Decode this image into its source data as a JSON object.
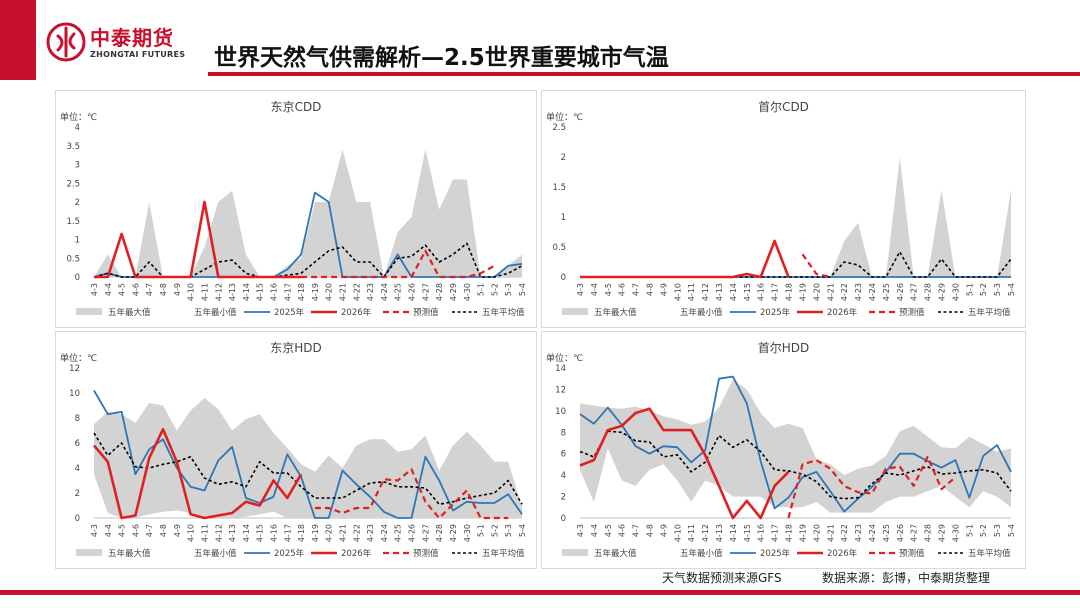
{
  "header": {
    "logo_cn": "中泰期货",
    "logo_en": "ZHONGTAI FUTURES",
    "title": "世界天然气供需解析—2.5世界重要城市气温"
  },
  "footer": {
    "gfs_source": "天气数据预测来源GFS",
    "data_source": "数据来源：彭博，中泰期货整理"
  },
  "colors": {
    "brand": "#c8102e",
    "band": "#d3d3d3",
    "y2025": "#2e75b6",
    "y2026": "#e02020",
    "forecast": "#e02020",
    "avg": "#000000"
  },
  "chart_data": [
    {
      "type": "line",
      "title": "东京CDD",
      "unit_label": "单位：℃",
      "ylim": [
        0,
        4
      ],
      "yticks": [
        "0",
        "0.5",
        "1",
        "1.5",
        "2",
        "2.5",
        "3",
        "3.5",
        "4"
      ],
      "categories": [
        "4-3",
        "4-4",
        "4-5",
        "4-6",
        "4-7",
        "4-8",
        "4-9",
        "4-10",
        "4-11",
        "4-12",
        "4-13",
        "4-14",
        "4-15",
        "4-16",
        "4-17",
        "4-18",
        "4-19",
        "4-20",
        "4-21",
        "4-22",
        "4-23",
        "4-24",
        "4-25",
        "4-26",
        "4-27",
        "4-28",
        "4-29",
        "4-30",
        "5-1",
        "5-2",
        "5-3",
        "5-4"
      ],
      "series": [
        {
          "name": "五年最大值",
          "kind": "band_max",
          "values": [
            0,
            0.6,
            0,
            0,
            2,
            0,
            0,
            0,
            0.8,
            2,
            2.3,
            0.6,
            0,
            0,
            0.3,
            0.5,
            2,
            2,
            3.4,
            2,
            2,
            0,
            1.2,
            1.6,
            3.4,
            1.8,
            2.6,
            2.6,
            0,
            0,
            0.3,
            0.6
          ]
        },
        {
          "name": "五年最小值",
          "kind": "band_min",
          "values": [
            0,
            0,
            0,
            0,
            0,
            0,
            0,
            0,
            0,
            0,
            0,
            0,
            0,
            0,
            0,
            0,
            0,
            0,
            0,
            0,
            0,
            0,
            0,
            0,
            0,
            0,
            0,
            0,
            0,
            0,
            0,
            0
          ]
        },
        {
          "name": "2025年",
          "kind": "line2025",
          "values": [
            0,
            0.1,
            0,
            0,
            0,
            0,
            0,
            0,
            0,
            0,
            0,
            0,
            0,
            0,
            0.2,
            0.6,
            2.25,
            2.0,
            0,
            0,
            0,
            0,
            0.6,
            0,
            0,
            0,
            0,
            0,
            0,
            0,
            0.3,
            0.35
          ]
        },
        {
          "name": "2026年",
          "kind": "line2026",
          "values": [
            0,
            0,
            1.15,
            0,
            0,
            0,
            0,
            0,
            2.0,
            0,
            0,
            0,
            0,
            0,
            0,
            0,
            null,
            null,
            null,
            null,
            null,
            null,
            null,
            null,
            null,
            null,
            null,
            null,
            null,
            null,
            null,
            null
          ]
        },
        {
          "name": "预测值",
          "kind": "forecast",
          "values": [
            null,
            null,
            null,
            null,
            null,
            null,
            null,
            null,
            null,
            null,
            null,
            null,
            null,
            null,
            null,
            0,
            0,
            0,
            0,
            0,
            0,
            0,
            0,
            0,
            0.7,
            0,
            0,
            0,
            0.1,
            0.3,
            null,
            null
          ]
        },
        {
          "name": "五年平均值",
          "kind": "avg",
          "values": [
            0,
            0.1,
            0,
            0,
            0.4,
            0,
            0,
            0,
            0.2,
            0.4,
            0.45,
            0.1,
            0,
            0,
            0.05,
            0.1,
            0.4,
            0.7,
            0.8,
            0.4,
            0.4,
            0,
            0.5,
            0.55,
            0.85,
            0.4,
            0.6,
            0.9,
            0,
            0,
            0.1,
            0.3
          ]
        }
      ]
    },
    {
      "type": "line",
      "title": "首尔CDD",
      "unit_label": "单位：℃",
      "ylim": [
        0,
        2.5
      ],
      "yticks": [
        "0",
        "0.5",
        "1",
        "1.5",
        "2",
        "2.5"
      ],
      "categories": [
        "4-3",
        "4-4",
        "4-5",
        "4-6",
        "4-7",
        "4-8",
        "4-9",
        "4-10",
        "4-11",
        "4-12",
        "4-13",
        "4-14",
        "4-15",
        "4-16",
        "4-17",
        "4-18",
        "4-19",
        "4-20",
        "4-21",
        "4-22",
        "4-23",
        "4-24",
        "4-25",
        "4-26",
        "4-27",
        "4-28",
        "4-29",
        "4-30",
        "5-1",
        "5-2",
        "5-3",
        "5-4"
      ],
      "series": [
        {
          "name": "五年最大值",
          "kind": "band_max",
          "values": [
            0,
            0,
            0,
            0,
            0,
            0,
            0,
            0,
            0,
            0,
            0,
            0,
            0,
            0,
            0,
            0,
            0,
            0,
            0,
            0.6,
            0.9,
            0,
            0,
            2.0,
            0,
            0,
            1.45,
            0,
            0,
            0,
            0,
            1.45
          ]
        },
        {
          "name": "五年最小值",
          "kind": "band_min",
          "values": [
            0,
            0,
            0,
            0,
            0,
            0,
            0,
            0,
            0,
            0,
            0,
            0,
            0,
            0,
            0,
            0,
            0,
            0,
            0,
            0,
            0,
            0,
            0,
            0,
            0,
            0,
            0,
            0,
            0,
            0,
            0,
            0
          ]
        },
        {
          "name": "2025年",
          "kind": "line2025",
          "values": [
            0,
            0,
            0,
            0,
            0,
            0,
            0,
            0,
            0,
            0,
            0,
            0,
            0,
            0,
            0,
            0,
            0,
            0,
            0,
            0,
            0,
            0,
            0,
            0,
            0,
            0,
            0,
            0,
            0,
            0,
            0,
            0
          ]
        },
        {
          "name": "2026年",
          "kind": "line2026",
          "values": [
            0,
            0,
            0,
            0,
            0,
            0,
            0,
            0,
            0,
            0,
            0,
            0,
            0.05,
            0,
            0.6,
            0,
            null,
            null,
            null,
            null,
            null,
            null,
            null,
            null,
            null,
            null,
            null,
            null,
            null,
            null,
            null,
            null
          ]
        },
        {
          "name": "预测值",
          "kind": "forecast",
          "values": [
            null,
            null,
            null,
            null,
            null,
            null,
            null,
            null,
            null,
            null,
            null,
            null,
            null,
            null,
            null,
            null,
            0.38,
            0.05,
            0,
            null,
            null,
            null,
            null,
            null,
            null,
            null,
            null,
            null,
            null,
            null,
            null,
            null
          ]
        },
        {
          "name": "五年平均值",
          "kind": "avg",
          "values": [
            0,
            0,
            0,
            0,
            0,
            0,
            0,
            0,
            0,
            0,
            0,
            0,
            0,
            0,
            0,
            0,
            0,
            0,
            0,
            0.25,
            0.2,
            0,
            0,
            0.42,
            0,
            0,
            0.3,
            0,
            0,
            0,
            0,
            0.3
          ]
        }
      ]
    },
    {
      "type": "line",
      "title": "东京HDD",
      "unit_label": "单位：℃",
      "ylim": [
        0,
        12
      ],
      "yticks": [
        "0",
        "2",
        "4",
        "6",
        "8",
        "10",
        "12"
      ],
      "categories": [
        "4-3",
        "4-4",
        "4-5",
        "4-6",
        "4-7",
        "4-8",
        "4-9",
        "4-10",
        "4-11",
        "4-12",
        "4-13",
        "4-14",
        "4-15",
        "4-16",
        "4-17",
        "4-18",
        "4-19",
        "4-20",
        "4-21",
        "4-22",
        "4-23",
        "4-24",
        "4-25",
        "4-26",
        "4-27",
        "4-28",
        "4-29",
        "4-30",
        "5-1",
        "5-2",
        "5-3",
        "5-4"
      ],
      "series": [
        {
          "name": "五年最大值",
          "kind": "band_max",
          "values": [
            7.5,
            8.5,
            8.3,
            7.6,
            9.2,
            9.0,
            7.0,
            8.6,
            9.6,
            8.7,
            7.0,
            7.9,
            8.3,
            6.8,
            5.6,
            4.3,
            3.7,
            5.0,
            4.0,
            5.8,
            6.3,
            6.3,
            5.3,
            5.5,
            6.6,
            3.8,
            5.8,
            6.9,
            5.8,
            4.5,
            4.5,
            0.9
          ]
        },
        {
          "name": "五年最小值",
          "kind": "band_min",
          "values": [
            3.5,
            0.4,
            0,
            0,
            0.3,
            0.5,
            0.6,
            0.4,
            0.1,
            0,
            0,
            0.1,
            0.3,
            0.5,
            0,
            0,
            0,
            0,
            0,
            0,
            0,
            0,
            0,
            0,
            0,
            0,
            0,
            0,
            0,
            0,
            0,
            0
          ]
        },
        {
          "name": "2025年",
          "kind": "line2025",
          "values": [
            10.2,
            8.3,
            8.5,
            3.5,
            5.5,
            6.3,
            4.0,
            2.5,
            2.2,
            4.6,
            5.7,
            1.6,
            1.2,
            1.7,
            5.1,
            3.3,
            0,
            0,
            3.8,
            2.7,
            1.7,
            0.5,
            0,
            0,
            4.9,
            3.0,
            0.6,
            1.3,
            1.2,
            1.2,
            1.9,
            0.3
          ]
        },
        {
          "name": "2026年",
          "kind": "line2026",
          "values": [
            5.8,
            4.5,
            0,
            0.2,
            4.8,
            7.1,
            4.5,
            0.3,
            0,
            0.2,
            0.4,
            1.3,
            1.0,
            3.0,
            1.6,
            3.5,
            null,
            null,
            null,
            null,
            null,
            null,
            null,
            null,
            null,
            null,
            null,
            null,
            null,
            null,
            null,
            null
          ]
        },
        {
          "name": "预测值",
          "kind": "forecast",
          "values": [
            null,
            null,
            null,
            null,
            null,
            null,
            null,
            null,
            null,
            null,
            null,
            null,
            null,
            null,
            null,
            null,
            0.8,
            0.8,
            0.4,
            0.8,
            0.8,
            3.1,
            3.0,
            3.9,
            1.3,
            0,
            1.1,
            2.2,
            0,
            0,
            0,
            null
          ]
        },
        {
          "name": "五年平均值",
          "kind": "avg",
          "values": [
            6.8,
            5.0,
            6.0,
            4.1,
            4.0,
            4.3,
            4.5,
            4.9,
            3.2,
            2.7,
            2.9,
            2.5,
            4.5,
            3.6,
            3.6,
            2.5,
            1.6,
            1.6,
            1.6,
            2.2,
            2.8,
            2.9,
            2.5,
            2.5,
            2.4,
            1.1,
            1.3,
            1.6,
            1.8,
            2.0,
            3.0,
            1.1
          ]
        }
      ]
    },
    {
      "type": "line",
      "title": "首尔HDD",
      "unit_label": "单位：℃",
      "ylim": [
        0,
        14
      ],
      "yticks": [
        "0",
        "2",
        "4",
        "6",
        "8",
        "10",
        "12",
        "14"
      ],
      "categories": [
        "4-3",
        "4-4",
        "4-5",
        "4-6",
        "4-7",
        "4-8",
        "4-9",
        "4-10",
        "4-11",
        "4-12",
        "4-13",
        "4-14",
        "4-15",
        "4-16",
        "4-17",
        "4-18",
        "4-19",
        "4-20",
        "4-21",
        "4-22",
        "4-23",
        "4-24",
        "4-25",
        "4-26",
        "4-27",
        "4-28",
        "4-29",
        "4-30",
        "5-1",
        "5-2",
        "5-3",
        "5-4"
      ],
      "series": [
        {
          "name": "五年最大值",
          "kind": "band_max",
          "values": [
            10.7,
            10.5,
            10.3,
            10.2,
            10.4,
            10.0,
            9.5,
            9.2,
            8.7,
            9.0,
            10.3,
            12.9,
            12.0,
            9.8,
            8.4,
            8.8,
            8.4,
            5.5,
            5.0,
            4.0,
            4.6,
            4.9,
            5.8,
            8.1,
            8.6,
            7.6,
            6.6,
            6.5,
            7.6,
            6.9,
            6.2,
            6.5
          ]
        },
        {
          "name": "五年最小值",
          "kind": "band_min",
          "values": [
            4.5,
            1.5,
            6.5,
            3.5,
            3.0,
            4.5,
            5.0,
            3.5,
            1.5,
            3.5,
            3.0,
            2.0,
            2.0,
            2.0,
            1.0,
            1.0,
            1.0,
            1.5,
            0.5,
            0.5,
            0.5,
            0.5,
            1.5,
            2.0,
            2.0,
            2.5,
            3.0,
            2.0,
            1.0,
            2.5,
            2.0,
            1.0
          ]
        },
        {
          "name": "2025年",
          "kind": "line2025",
          "values": [
            9.7,
            8.8,
            10.3,
            8.7,
            6.7,
            6.0,
            6.7,
            6.6,
            5.2,
            6.3,
            13.0,
            13.2,
            10.7,
            5.3,
            0.9,
            1.9,
            3.8,
            4.3,
            2.5,
            0.6,
            1.8,
            2.9,
            4.3,
            6.0,
            6.0,
            5.3,
            4.7,
            5.4,
            1.9,
            5.8,
            6.8,
            4.3
          ]
        },
        {
          "name": "2026年",
          "kind": "line2026",
          "values": [
            4.9,
            5.4,
            8.2,
            8.6,
            9.8,
            10.2,
            8.2,
            8.2,
            8.2,
            5.9,
            3.0,
            0,
            1.6,
            0,
            3.0,
            4.3,
            null,
            null,
            null,
            null,
            null,
            null,
            null,
            null,
            null,
            null,
            null,
            null,
            null,
            null,
            null,
            null
          ]
        },
        {
          "name": "预测值",
          "kind": "forecast",
          "values": [
            null,
            null,
            null,
            null,
            null,
            null,
            null,
            null,
            null,
            null,
            null,
            null,
            null,
            null,
            null,
            0,
            5.0,
            5.4,
            4.6,
            3.0,
            2.4,
            2.3,
            4.6,
            4.8,
            3.0,
            5.7,
            2.7,
            3.8,
            null,
            null,
            null,
            null
          ]
        },
        {
          "name": "五年平均值",
          "kind": "avg",
          "values": [
            6.2,
            5.7,
            8.1,
            8.0,
            7.2,
            7.1,
            5.7,
            5.9,
            4.3,
            5.2,
            7.7,
            6.6,
            7.3,
            6.2,
            4.5,
            4.4,
            4.1,
            3.4,
            2.0,
            1.8,
            1.9,
            3.2,
            4.2,
            4.0,
            4.4,
            4.8,
            4.1,
            4.2,
            4.4,
            4.5,
            4.2,
            2.5
          ]
        }
      ]
    }
  ]
}
